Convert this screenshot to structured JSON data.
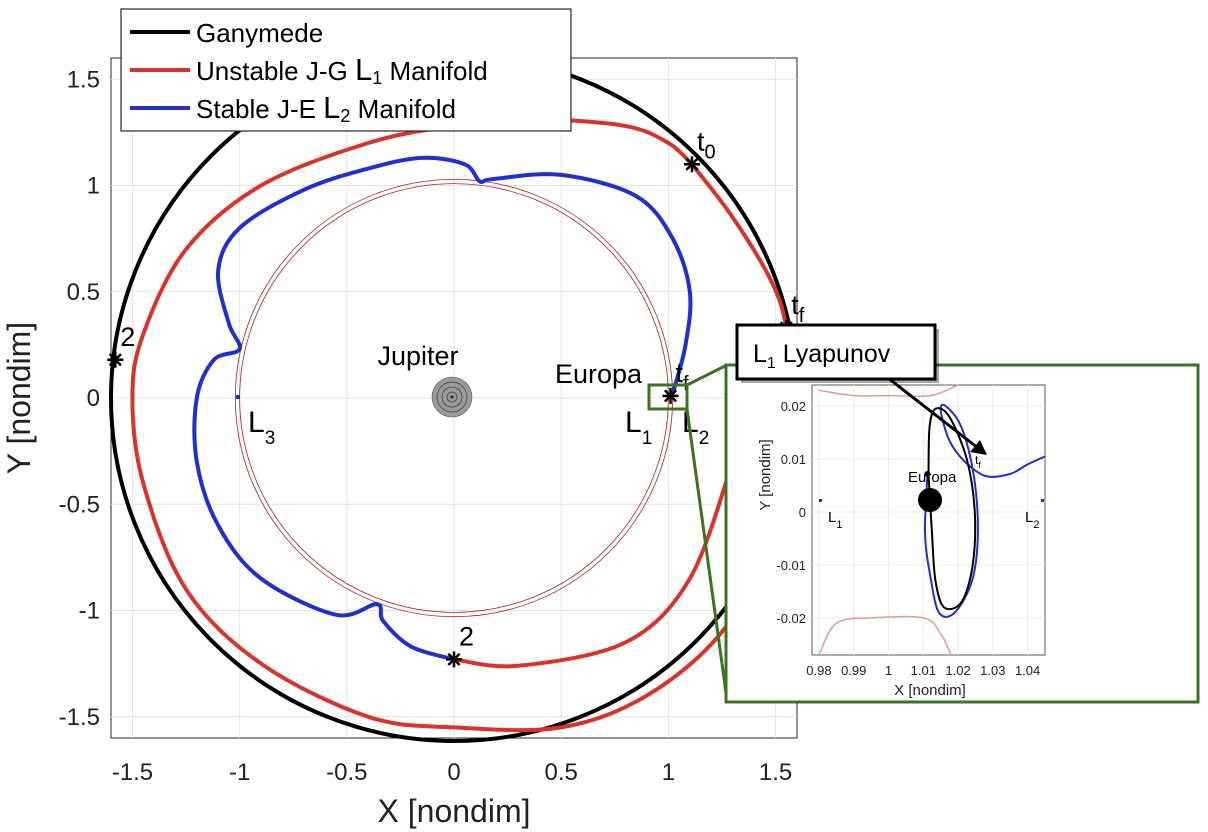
{
  "chart_data": {
    "type": "line",
    "xlabel": "X [nondim]",
    "ylabel": "Y [nondim]",
    "xlim": [
      -1.6,
      1.6
    ],
    "ylim": [
      -1.6,
      1.6
    ],
    "xticks": [
      "-1.5",
      "-1",
      "-0.5",
      "0",
      "0.5",
      "1",
      "1.5"
    ],
    "yticks": [
      "1.5",
      "1",
      "0.5",
      "0",
      "-0.5",
      "-1",
      "-1.5"
    ],
    "grid": true,
    "legend_position": "top-left",
    "legend": {
      "ganymede": "Ganymede",
      "unstable_prefix": "Unstable J-G ",
      "unstable_L": "L",
      "unstable_sub": "1",
      "unstable_suffix": " Manifold",
      "stable_prefix": "Stable J-E ",
      "stable_L": "L",
      "stable_sub": "2",
      "stable_suffix": " Manifold"
    },
    "colors": {
      "ganymede": "#000000",
      "unstable": "#d9342b",
      "stable": "#1f2fd1",
      "orbit_rings": "#b02020",
      "inset_frame": "#3b7322"
    },
    "series": [
      {
        "name": "Ganymede",
        "points": [
          [
            0,
            0
          ]
        ]
      },
      {
        "name": "Unstable J-G L1 Manifold",
        "points": [
          [
            1.11,
            1.1
          ],
          [
            1.0,
            1.2
          ],
          [
            0.8,
            1.28
          ],
          [
            0.4,
            1.31
          ],
          [
            0.0,
            1.28
          ],
          [
            -0.4,
            1.2
          ],
          [
            -0.9,
            1.0
          ],
          [
            -1.25,
            0.7
          ],
          [
            -1.45,
            0.3
          ],
          [
            -1.5,
            0.0
          ],
          [
            -1.45,
            -0.4
          ],
          [
            -1.25,
            -0.9
          ],
          [
            -0.9,
            -1.25
          ],
          [
            -0.4,
            -1.5
          ],
          [
            0.0,
            -1.55
          ],
          [
            0.5,
            -1.55
          ],
          [
            0.9,
            -1.4
          ],
          [
            1.25,
            -1.1
          ],
          [
            1.45,
            -0.7
          ],
          [
            1.58,
            0.0
          ],
          [
            1.55,
            0.33
          ],
          [
            1.48,
            0.55
          ],
          [
            1.3,
            0.85
          ],
          [
            1.11,
            1.1
          ]
        ]
      },
      {
        "name": "Unstable J-G L1 Manifold (inner)",
        "points": [
          [
            1.3,
            -0.3
          ],
          [
            1.1,
            -0.85
          ],
          [
            0.8,
            -1.15
          ],
          [
            0.3,
            -1.26
          ],
          [
            0.0,
            -1.23
          ]
        ]
      },
      {
        "name": "Stable J-E L2 Manifold",
        "points": [
          [
            1.02,
            0.02
          ],
          [
            1.08,
            0.25
          ],
          [
            1.1,
            0.5
          ],
          [
            1.02,
            0.75
          ],
          [
            0.85,
            0.95
          ],
          [
            0.5,
            1.05
          ],
          [
            0.18,
            1.03
          ],
          [
            0.12,
            1.02
          ],
          [
            0.05,
            1.1
          ],
          [
            -0.15,
            1.13
          ],
          [
            -0.4,
            1.08
          ],
          [
            -0.7,
            0.98
          ],
          [
            -1.0,
            0.8
          ],
          [
            -1.1,
            0.6
          ],
          [
            -1.05,
            0.35
          ],
          [
            -1.0,
            0.23
          ],
          [
            -1.12,
            0.18
          ],
          [
            -1.2,
            0.0
          ],
          [
            -1.2,
            -0.3
          ],
          [
            -1.1,
            -0.6
          ],
          [
            -0.9,
            -0.85
          ],
          [
            -0.55,
            -1.02
          ],
          [
            -0.36,
            -0.97
          ],
          [
            -0.33,
            -1.05
          ],
          [
            -0.2,
            -1.17
          ],
          [
            0.0,
            -1.23
          ]
        ]
      }
    ],
    "rings": [
      1.0,
      1.02
    ],
    "markers": [
      {
        "label": "t",
        "sub": "0",
        "x": 1.11,
        "y": 1.1
      },
      {
        "label": "t",
        "sub": "f",
        "x": 1.55,
        "y": 0.33
      },
      {
        "label": "2",
        "sub": "",
        "x": -1.58,
        "y": 0.18
      },
      {
        "label": "2",
        "sub": "",
        "x": 0.0,
        "y": -1.23
      },
      {
        "label": "t",
        "sub": "f",
        "x": 1.01,
        "y": 0.01
      }
    ],
    "annotations": {
      "jupiter": "Jupiter",
      "europa": "Europa",
      "L1": "L",
      "L1_sub": "1",
      "L2": "L",
      "L2_sub": "2",
      "L3": "L",
      "L3_sub": "3",
      "lyapunov_L": "L",
      "lyapunov_sub": "1",
      "lyapunov_text": " Lyapunov"
    },
    "inset": {
      "xlabel": "X [nondim]",
      "ylabel": "Y [nondim]",
      "xlim": [
        0.978,
        1.045
      ],
      "ylim": [
        -0.027,
        0.024
      ],
      "xticks": [
        "0.98",
        "0.99",
        "1",
        "1.01",
        "1.02",
        "1.03",
        "1.04"
      ],
      "yticks": [
        "0.02",
        "0.01",
        "0",
        "-0.01",
        "-0.02"
      ],
      "europa": "Europa",
      "L1": "L",
      "L1_sub": "1",
      "L2": "L",
      "L2_sub": "2",
      "tf": "t",
      "tf_sub": "f",
      "lyapunov_orbit": [
        [
          1.0115,
          0.0072
        ],
        [
          1.0118,
          0.016
        ],
        [
          1.0135,
          0.0195
        ],
        [
          1.0175,
          0.018
        ],
        [
          1.0225,
          0.01
        ],
        [
          1.0248,
          0.0
        ],
        [
          1.0242,
          -0.01
        ],
        [
          1.021,
          -0.017
        ],
        [
          1.016,
          -0.018
        ],
        [
          1.0135,
          -0.013
        ],
        [
          1.0125,
          -0.004
        ],
        [
          1.0115,
          0.0072
        ]
      ],
      "stable_manifold": [
        [
          1.045,
          0.0105
        ],
        [
          1.04,
          0.009
        ],
        [
          1.035,
          0.0072
        ],
        [
          1.028,
          0.0068
        ],
        [
          1.022,
          0.0095
        ],
        [
          1.0175,
          0.0135
        ],
        [
          1.015,
          0.0192
        ],
        [
          1.0165,
          0.02
        ],
        [
          1.021,
          0.016
        ],
        [
          1.0245,
          0.007
        ],
        [
          1.0257,
          -0.004
        ],
        [
          1.024,
          -0.013
        ],
        [
          1.019,
          -0.019
        ],
        [
          1.0145,
          -0.019
        ],
        [
          1.012,
          -0.012
        ],
        [
          1.0105,
          -0.004
        ],
        [
          1.0112,
          0.0072
        ]
      ],
      "zero_velocity_top": [
        [
          0.98,
          0.023
        ],
        [
          0.99,
          0.022
        ],
        [
          1.0,
          0.022
        ],
        [
          1.012,
          0.022
        ],
        [
          1.02,
          0.024
        ]
      ],
      "zero_velocity_bottom": [
        [
          0.98,
          -0.027
        ],
        [
          0.985,
          -0.021
        ],
        [
          0.995,
          -0.02
        ],
        [
          1.01,
          -0.02
        ],
        [
          1.015,
          -0.023
        ],
        [
          1.018,
          -0.027
        ]
      ]
    }
  }
}
